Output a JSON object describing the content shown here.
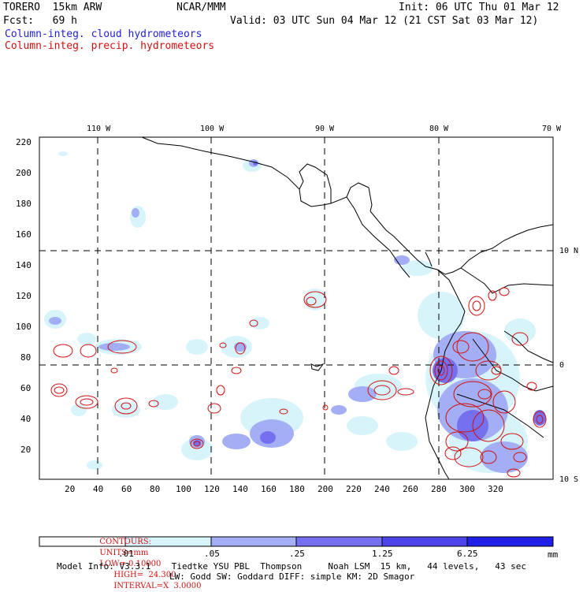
{
  "header": {
    "model": "TORERO  15km ARW",
    "org": "NCAR/MMM",
    "init": "Init: 06 UTC Thu 01 Mar 12",
    "fcst": "Fcst:   69 h",
    "valid": "Valid: 03 UTC Sun 04 Mar 12 (21 CST Sat 03 Mar 12)",
    "legend_cloud": "Column-integ. cloud hydrometeors",
    "legend_precip": "Column-integ. precip. hydrometeors"
  },
  "map": {
    "lon_labels": [
      "110 W",
      "100 W",
      "90 W",
      "80 W",
      "70 W"
    ],
    "lat_labels": [
      "10 N",
      "0",
      "10 S"
    ],
    "x_ticks": [
      "20",
      "40",
      "60",
      "80",
      "100",
      "120",
      "140",
      "160",
      "180",
      "200",
      "220",
      "240",
      "260",
      "280",
      "300",
      "320"
    ],
    "y_ticks": [
      "20",
      "40",
      "60",
      "80",
      "100",
      "120",
      "140",
      "160",
      "180",
      "200",
      "220"
    ],
    "grid_lines": "dashed"
  },
  "contours_line": {
    "label": "CONTOURS:",
    "units": "UNITS=mm",
    "low": "LOW= 0.10000",
    "high": "HIGH=  24.300",
    "interval": "INTERVAL=X  3.0000"
  },
  "colorbar": {
    "unit": "mm",
    "labels": [
      ".01",
      ".05",
      ".25",
      "1.25",
      "6.25"
    ],
    "colors": [
      "#ffffff",
      "#d8f4fb",
      "#a3aef5",
      "#7470ef",
      "#4d45ea",
      "#2020e8"
    ]
  },
  "footer": {
    "line1": "Model Info: V3.3.1    Tiedtke YSU PBL  Thompson     Noah LSM  15 km,   44 levels,   43 sec",
    "line2": "LW: Godd SW: Goddard DIFF: simple KM: 2D Smagor"
  }
}
